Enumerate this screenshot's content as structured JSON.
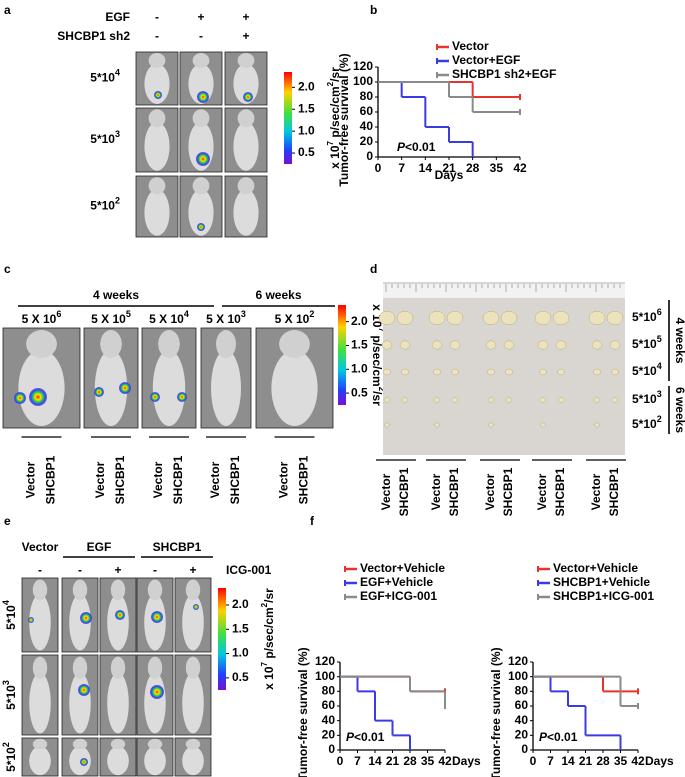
{
  "panels": {
    "a": {
      "letter": "a",
      "treatments": [
        {
          "label": "EGF",
          "marks": [
            "-",
            "+",
            "+"
          ]
        },
        {
          "label": "SHCBP1 sh2",
          "marks": [
            "-",
            "-",
            "+"
          ]
        }
      ],
      "doses": [
        {
          "base": "5*10",
          "exp": "4"
        },
        {
          "base": "5*10",
          "exp": "3"
        },
        {
          "base": "5*10",
          "exp": "2"
        }
      ],
      "colorbar": {
        "range": [
          0.25,
          2.35
        ],
        "ticks": [
          {
            "value": 2,
            "label": "2.0"
          },
          {
            "value": 1.5,
            "label": "1.5"
          },
          {
            "value": 1,
            "label": "1.0"
          },
          {
            "value": 0.5,
            "label": "0.5"
          }
        ],
        "unit": [
          "x 10",
          "7",
          " p/sec/cm",
          "2",
          "/sr"
        ]
      }
    },
    "b": {
      "letter": "b"
    },
    "c": {
      "letter": "c",
      "periods": [
        {
          "label": "4 weeks",
          "doses": [
            {
              "base": "5 X 10",
              "exp": "6"
            },
            {
              "base": "5 X 10",
              "exp": "5"
            },
            {
              "base": "5 X 10",
              "exp": "4"
            }
          ]
        },
        {
          "label": "6 weeks",
          "doses": [
            {
              "base": "5 X 10",
              "exp": "3"
            },
            {
              "base": "5 X 10",
              "exp": "2"
            }
          ]
        }
      ],
      "groups": [
        "Vector",
        "SHCBP1"
      ],
      "colorbar": {
        "range": [
          0.25,
          2.35
        ],
        "ticks": [
          {
            "value": 2,
            "label": "2.0"
          },
          {
            "value": 1.5,
            "label": "1.5"
          },
          {
            "value": 1,
            "label": "1.0"
          },
          {
            "value": 0.5,
            "label": "0.5"
          }
        ],
        "unit": [
          "x 10",
          "7",
          " p/sec/cm",
          "2",
          "/sr"
        ]
      }
    },
    "d": {
      "letter": "d",
      "doses": [
        {
          "base": "5*10",
          "exp": "6"
        },
        {
          "base": "5*10",
          "exp": "5"
        },
        {
          "base": "5*10",
          "exp": "4"
        },
        {
          "base": "5*10",
          "exp": "3"
        },
        {
          "base": "5*10",
          "exp": "2"
        }
      ],
      "periods": [
        {
          "label": "4 weeks"
        },
        {
          "label": "6 weeks"
        }
      ],
      "groups": [
        "Vector",
        "SHCBP1"
      ]
    },
    "e": {
      "letter": "e",
      "groups": [
        "Vector",
        "EGF",
        "SHCBP1"
      ],
      "treatment": {
        "label": "ICG-001",
        "marks": [
          "-",
          "-",
          "+",
          "-",
          "+"
        ]
      },
      "doses": [
        {
          "base": "5*10",
          "exp": "4"
        },
        {
          "base": "5*10",
          "exp": "3"
        },
        {
          "base": "5*10",
          "exp": "2"
        }
      ],
      "colorbar": {
        "range": [
          0.25,
          2.35
        ],
        "ticks": [
          {
            "value": 2,
            "label": "2.0"
          },
          {
            "value": 1.5,
            "label": "1.5"
          },
          {
            "value": 1,
            "label": "1.0"
          },
          {
            "value": 0.5,
            "label": "0.5"
          }
        ],
        "unit": [
          "x 10",
          "7",
          " p/sec/cm",
          "2",
          "/sr"
        ]
      }
    },
    "f": {
      "letter": "f"
    }
  },
  "chart_data": [
    {
      "type": "step",
      "ylabel": "Tumor-free survival (%)",
      "xlabel": "Days",
      "annotation": {
        "italic": "P",
        "text": "<0.01"
      },
      "xlim": [
        0,
        42
      ],
      "xticks": [
        0,
        7,
        14,
        21,
        28,
        35,
        42
      ],
      "ylim": [
        0,
        120
      ],
      "yticks": [
        0,
        20,
        40,
        60,
        80,
        100,
        120
      ],
      "series": [
        {
          "name": "Vector",
          "color": "#e8322e",
          "x": [
            0,
            28,
            42
          ],
          "values": [
            100,
            80,
            80
          ]
        },
        {
          "name": "Vector+EGF",
          "color": "#3b3be6",
          "x": [
            0,
            7,
            14,
            21,
            28
          ],
          "values": [
            100,
            80,
            40,
            20,
            0
          ]
        },
        {
          "name": "SHCBP1 sh2+EGF",
          "color": "#8a8a8a",
          "x": [
            0,
            21,
            28,
            42
          ],
          "values": [
            100,
            80,
            60,
            60
          ]
        }
      ]
    },
    {
      "type": "step",
      "ylabel": "Tumor-free survival (%)",
      "xlabel": "Days",
      "annotation": {
        "italic": "P",
        "text": "<0.01"
      },
      "xlim": [
        0,
        42
      ],
      "xticks": [
        0,
        7,
        14,
        21,
        28,
        35,
        42
      ],
      "ylim": [
        0,
        120
      ],
      "yticks": [
        0,
        20,
        40,
        60,
        80,
        100,
        120
      ],
      "series": [
        {
          "name": "Vector+Vehicle",
          "color": "#e8322e",
          "x": [
            0,
            28,
            42
          ],
          "values": [
            100,
            80,
            80
          ]
        },
        {
          "name": "EGF+Vehicle",
          "color": "#3b3be6",
          "x": [
            0,
            7,
            14,
            21,
            28
          ],
          "values": [
            100,
            80,
            40,
            20,
            0
          ]
        },
        {
          "name": "EGF+ICG-001",
          "color": "#8a8a8a",
          "x": [
            0,
            28,
            42
          ],
          "values": [
            100,
            80,
            60
          ]
        }
      ]
    },
    {
      "type": "step",
      "ylabel": "Tumor-free survival (%)",
      "xlabel": "Days",
      "annotation": {
        "italic": "P",
        "text": "<0.01"
      },
      "xlim": [
        0,
        42
      ],
      "xticks": [
        0,
        7,
        14,
        21,
        28,
        35,
        42
      ],
      "ylim": [
        0,
        120
      ],
      "yticks": [
        0,
        20,
        40,
        60,
        80,
        100,
        120
      ],
      "series": [
        {
          "name": "Vector+Vehicle",
          "color": "#e8322e",
          "x": [
            0,
            28,
            42
          ],
          "values": [
            100,
            80,
            80
          ]
        },
        {
          "name": "SHCBP1+Vehicle",
          "color": "#3b3be6",
          "x": [
            0,
            7,
            14,
            21,
            35
          ],
          "values": [
            100,
            80,
            60,
            20,
            0
          ]
        },
        {
          "name": "SHCBP1+ICG-001",
          "color": "#8a8a8a",
          "x": [
            0,
            35,
            42
          ],
          "values": [
            100,
            60,
            60
          ]
        }
      ]
    }
  ]
}
